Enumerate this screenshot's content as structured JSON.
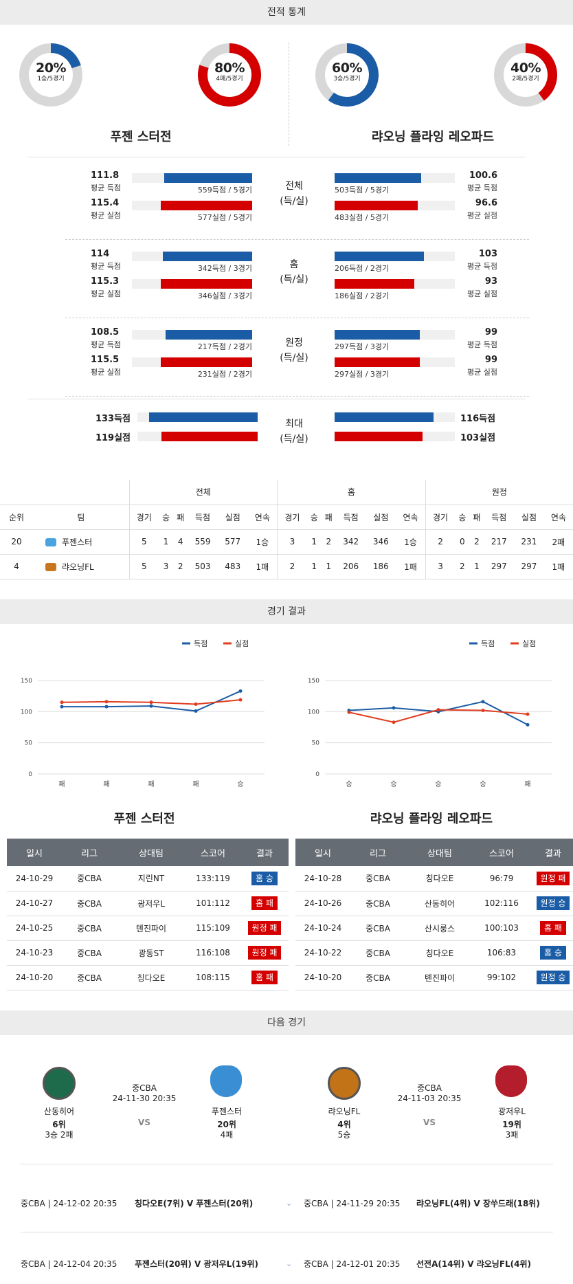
{
  "sections": {
    "record_stats": "전적 통계",
    "match_results": "경기 결과",
    "next_game": "다음 경기"
  },
  "donuts": [
    {
      "pct": "20%",
      "sub": "1승/5경기",
      "value": 0.2,
      "color": "#1a5ca5"
    },
    {
      "pct": "80%",
      "sub": "4패/5경기",
      "value": 0.8,
      "color": "#d40000"
    },
    {
      "pct": "60%",
      "sub": "3승/5경기",
      "value": 0.6,
      "color": "#1a5ca5"
    },
    {
      "pct": "40%",
      "sub": "2패/5경기",
      "value": 0.4,
      "color": "#d40000"
    }
  ],
  "teams": {
    "left": "푸젠 스터전",
    "right": "랴오닝 플라잉 레오파드"
  },
  "stat_groups": [
    {
      "label": "전체",
      "sub": "(득/실)",
      "rows": [
        {
          "lval": "111.8",
          "llabel": "평균 득점",
          "lcap": "559득점 / 5경기",
          "lfrac": 0.73,
          "rval": "100.6",
          "rlabel": "평균 득점",
          "rcap": "503득점 / 5경기",
          "rfrac": 0.72,
          "color": "blue"
        },
        {
          "lval": "115.4",
          "llabel": "평균 실점",
          "lcap": "577실점 / 5경기",
          "lfrac": 0.76,
          "rval": "96.6",
          "rlabel": "평균 실점",
          "rcap": "483실점 / 5경기",
          "rfrac": 0.69,
          "color": "red"
        }
      ]
    },
    {
      "label": "홈",
      "sub": "(득/실)",
      "rows": [
        {
          "lval": "114",
          "llabel": "평균 득점",
          "lcap": "342득점 / 3경기",
          "lfrac": 0.74,
          "rval": "103",
          "rlabel": "평균 득점",
          "rcap": "206득점 / 2경기",
          "rfrac": 0.74,
          "color": "blue"
        },
        {
          "lval": "115.3",
          "llabel": "평균 실점",
          "lcap": "346실점 / 3경기",
          "lfrac": 0.76,
          "rval": "93",
          "rlabel": "평균 실점",
          "rcap": "186실점 / 2경기",
          "rfrac": 0.66,
          "color": "red"
        }
      ]
    },
    {
      "label": "원정",
      "sub": "(득/실)",
      "rows": [
        {
          "lval": "108.5",
          "llabel": "평균 득점",
          "lcap": "217득점 / 2경기",
          "lfrac": 0.72,
          "rval": "99",
          "rlabel": "평균 득점",
          "rcap": "297득점 / 3경기",
          "rfrac": 0.71,
          "color": "blue"
        },
        {
          "lval": "115.5",
          "llabel": "평균 실점",
          "lcap": "231실점 / 2경기",
          "lfrac": 0.76,
          "rval": "99",
          "rlabel": "평균 실점",
          "rcap": "297실점 / 3경기",
          "rfrac": 0.71,
          "color": "red"
        }
      ]
    }
  ],
  "max_group": {
    "label": "최대",
    "sub": "(득/실)",
    "rows": [
      {
        "lval": "133득점",
        "lfrac": 0.9,
        "rval": "116득점",
        "rfrac": 0.82,
        "color": "blue"
      },
      {
        "lval": "119실점",
        "lfrac": 0.8,
        "rval": "103실점",
        "rfrac": 0.73,
        "color": "red"
      }
    ]
  },
  "standings": {
    "group_headers": [
      "전체",
      "홈",
      "원정"
    ],
    "columns": [
      "순위",
      "팀",
      "경기",
      "승",
      "패",
      "득점",
      "실점",
      "연속",
      "경기",
      "승",
      "패",
      "득점",
      "실점",
      "연속",
      "경기",
      "승",
      "패",
      "득점",
      "실점",
      "연속"
    ],
    "rows": [
      {
        "rank": "20",
        "team": "푸젠스터",
        "cells": [
          "5",
          "1",
          "4",
          "559",
          "577",
          "1승",
          "3",
          "1",
          "2",
          "342",
          "346",
          "1승",
          "2",
          "0",
          "2",
          "217",
          "231",
          "2패"
        ]
      },
      {
        "rank": "4",
        "team": "랴오닝FL",
        "cells": [
          "5",
          "3",
          "2",
          "503",
          "483",
          "1패",
          "2",
          "1",
          "1",
          "206",
          "186",
          "1패",
          "3",
          "2",
          "1",
          "297",
          "297",
          "1패"
        ]
      }
    ]
  },
  "chart_data": [
    {
      "type": "line",
      "categories": [
        "패",
        "패",
        "패",
        "패",
        "승"
      ],
      "series": [
        {
          "name": "득점",
          "values": [
            108,
            108,
            109,
            101,
            133
          ],
          "color": "#1a5ca5"
        },
        {
          "name": "실점",
          "values": [
            115,
            116,
            115,
            112,
            119
          ],
          "color": "#e03c1e"
        }
      ],
      "ylim": [
        0,
        150
      ],
      "yticks": [
        0,
        50,
        100,
        150
      ],
      "legend": "top-right",
      "grid": true,
      "title": "",
      "xlabel": "",
      "ylabel": ""
    },
    {
      "type": "line",
      "categories": [
        "승",
        "승",
        "승",
        "승",
        "패"
      ],
      "series": [
        {
          "name": "득점",
          "values": [
            102,
            106,
            100,
            116,
            79
          ],
          "color": "#1a5ca5"
        },
        {
          "name": "실점",
          "values": [
            99,
            83,
            103,
            102,
            96
          ],
          "color": "#e03c1e"
        }
      ],
      "ylim": [
        0,
        150
      ],
      "yticks": [
        0,
        50,
        100,
        150
      ],
      "legend": "top-right",
      "grid": true,
      "title": "",
      "xlabel": "",
      "ylabel": ""
    }
  ],
  "results": {
    "headers": [
      "일시",
      "리그",
      "상대팀",
      "스코어",
      "결과"
    ],
    "left": [
      [
        "24-10-29",
        "중CBA",
        "지린NT",
        "133:119",
        "홈 승",
        "blue"
      ],
      [
        "24-10-27",
        "중CBA",
        "광저우L",
        "101:112",
        "홈 패",
        "red"
      ],
      [
        "24-10-25",
        "중CBA",
        "톈진파이",
        "115:109",
        "원정 패",
        "red"
      ],
      [
        "24-10-23",
        "중CBA",
        "광동ST",
        "116:108",
        "원정 패",
        "red"
      ],
      [
        "24-10-20",
        "중CBA",
        "칭다오E",
        "108:115",
        "홈 패",
        "red"
      ]
    ],
    "right": [
      [
        "24-10-28",
        "중CBA",
        "칭다오E",
        "96:79",
        "원정 패",
        "red"
      ],
      [
        "24-10-26",
        "중CBA",
        "산동히어",
        "102:116",
        "원정 승",
        "blue"
      ],
      [
        "24-10-24",
        "중CBA",
        "산시룽스",
        "100:103",
        "홈 패",
        "red"
      ],
      [
        "24-10-22",
        "중CBA",
        "칭다오E",
        "106:83",
        "홈 승",
        "blue"
      ],
      [
        "24-10-20",
        "중CBA",
        "톈진파이",
        "99:102",
        "원정 승",
        "blue"
      ]
    ]
  },
  "next_games": [
    {
      "home": "산동히어",
      "home_rank": "6위",
      "home_rec": "3승 2패",
      "league": "중CBA",
      "time": "24-11-30 20:35",
      "vs": "VS",
      "away": "푸젠스터",
      "away_rank": "20위",
      "away_rec": "4패"
    },
    {
      "home": "랴오닝FL",
      "home_rank": "4위",
      "home_rec": "5승",
      "league": "중CBA",
      "time": "24-11-03 20:35",
      "vs": "VS",
      "away": "광저우L",
      "away_rank": "19위",
      "away_rec": "3패"
    }
  ],
  "upcoming": [
    {
      "left_info": "중CBA | 24-12-02 20:35",
      "left_teams": "칭다오E(7위) V 푸젠스터(20위)",
      "right_info": "중CBA | 24-11-29 20:35",
      "right_teams": "랴오닝FL(4위) V 장쑤드래(18위)"
    },
    {
      "left_info": "중CBA | 24-12-04 20:35",
      "left_teams": "푸젠스터(20위) V 광저우L(19위)",
      "right_info": "중CBA | 24-12-01 20:35",
      "right_teams": "선전A(14위) V 랴오닝FL(4위)"
    }
  ]
}
